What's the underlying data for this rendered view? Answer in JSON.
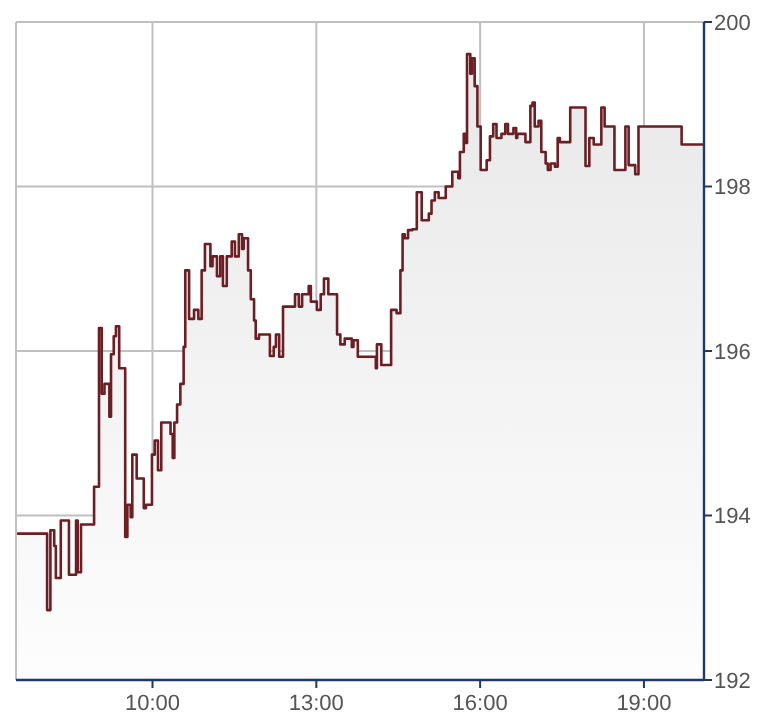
{
  "chart_data": {
    "type": "area",
    "x": [
      7.52,
      8.07,
      8.07,
      8.13,
      8.13,
      8.2,
      8.2,
      8.23,
      8.23,
      8.32,
      8.32,
      8.47,
      8.47,
      8.6,
      8.6,
      8.63,
      8.63,
      8.69,
      8.69,
      8.93,
      8.93,
      9.02,
      9.02,
      9.07,
      9.07,
      9.12,
      9.12,
      9.21,
      9.21,
      9.24,
      9.24,
      9.29,
      9.29,
      9.33,
      9.33,
      9.39,
      9.39,
      9.5,
      9.5,
      9.54,
      9.54,
      9.6,
      9.6,
      9.63,
      9.63,
      9.71,
      9.71,
      9.84,
      9.84,
      9.88,
      9.88,
      9.99,
      9.99,
      10.04,
      10.04,
      10.1,
      10.1,
      10.16,
      10.16,
      10.33,
      10.33,
      10.37,
      10.37,
      10.4,
      10.4,
      10.45,
      10.45,
      10.51,
      10.51,
      10.57,
      10.57,
      10.6,
      10.6,
      10.67,
      10.67,
      10.76,
      10.76,
      10.84,
      10.84,
      10.9,
      10.9,
      10.96,
      10.96,
      11.06,
      11.06,
      11.1,
      11.1,
      11.18,
      11.18,
      11.24,
      11.24,
      11.29,
      11.29,
      11.36,
      11.36,
      11.45,
      11.45,
      11.51,
      11.51,
      11.58,
      11.58,
      11.64,
      11.64,
      11.67,
      11.67,
      11.75,
      11.75,
      11.8,
      11.8,
      11.86,
      11.86,
      11.89,
      11.89,
      11.95,
      11.95,
      12.15,
      12.15,
      12.22,
      12.22,
      12.26,
      12.26,
      12.32,
      12.32,
      12.39,
      12.39,
      12.61,
      12.61,
      12.68,
      12.68,
      12.74,
      12.74,
      12.86,
      12.86,
      12.9,
      12.9,
      13.01,
      13.01,
      13.08,
      13.08,
      13.14,
      13.14,
      13.22,
      13.22,
      13.38,
      13.38,
      13.44,
      13.44,
      13.52,
      13.52,
      13.65,
      13.65,
      13.68,
      13.68,
      13.76,
      13.76,
      14.09,
      14.09,
      14.11,
      14.11,
      14.19,
      14.19,
      14.37,
      14.37,
      14.47,
      14.47,
      14.54,
      14.54,
      14.58,
      14.58,
      14.62,
      14.62,
      14.68,
      14.68,
      14.76,
      14.76,
      14.84,
      14.84,
      14.93,
      14.93,
      15.06,
      15.06,
      15.11,
      15.11,
      15.17,
      15.17,
      15.24,
      15.24,
      15.37,
      15.37,
      15.49,
      15.49,
      15.6,
      15.6,
      15.63,
      15.63,
      15.7,
      15.7,
      15.73,
      15.73,
      15.76,
      15.76,
      15.82,
      15.82,
      15.85,
      15.85,
      15.9,
      15.9,
      15.95,
      15.95,
      16.01,
      16.01,
      16.12,
      16.12,
      16.18,
      16.18,
      16.24,
      16.24,
      16.3,
      16.3,
      16.39,
      16.39,
      16.46,
      16.46,
      16.51,
      16.51,
      16.61,
      16.61,
      16.66,
      16.66,
      16.68,
      16.68,
      16.83,
      16.83,
      16.92,
      16.92,
      16.96,
      16.96,
      17.0,
      17.0,
      17.07,
      17.07,
      17.12,
      17.12,
      17.2,
      17.2,
      17.24,
      17.24,
      17.29,
      17.29,
      17.37,
      17.37,
      17.42,
      17.42,
      17.46,
      17.46,
      17.65,
      17.65,
      17.93,
      17.93,
      18.0,
      18.0,
      18.08,
      18.08,
      18.22,
      18.22,
      18.28,
      18.28,
      18.46,
      18.46,
      18.66,
      18.66,
      18.72,
      18.72,
      18.84,
      18.84,
      18.9,
      18.9,
      19.69,
      19.69,
      20.1
    ],
    "series": [
      {
        "color": "#6b1f24",
        "values": [
          193.78,
          193.78,
          192.85,
          192.85,
          193.82,
          193.82,
          193.63,
          193.63,
          193.24,
          193.24,
          193.94,
          193.94,
          193.28,
          193.28,
          193.94,
          193.94,
          193.31,
          193.31,
          193.89,
          193.89,
          194.35,
          194.35,
          196.28,
          196.28,
          195.48,
          195.48,
          195.6,
          195.6,
          195.2,
          195.2,
          195.96,
          195.96,
          196.18,
          196.18,
          196.3,
          196.3,
          195.79,
          195.79,
          193.74,
          193.74,
          194.13,
          194.13,
          193.98,
          193.98,
          194.74,
          194.74,
          194.45,
          194.45,
          194.09,
          194.09,
          194.13,
          194.13,
          194.74,
          194.74,
          194.91,
          194.91,
          194.55,
          194.55,
          195.13,
          195.13,
          194.99,
          194.99,
          194.7,
          194.7,
          195.13,
          195.13,
          195.35,
          195.35,
          195.6,
          195.6,
          196.05,
          196.05,
          196.98,
          196.98,
          196.39,
          196.39,
          196.5,
          196.5,
          196.39,
          196.39,
          196.98,
          196.98,
          197.3,
          197.3,
          197.03,
          197.03,
          197.15,
          197.15,
          196.91,
          196.91,
          197.15,
          197.15,
          196.79,
          196.79,
          197.15,
          197.15,
          197.33,
          197.33,
          197.15,
          197.15,
          197.42,
          197.42,
          197.24,
          197.24,
          197.37,
          197.37,
          196.98,
          196.98,
          196.63,
          196.63,
          196.37,
          196.37,
          196.15,
          196.15,
          196.2,
          196.2,
          195.94,
          195.94,
          196.05,
          196.05,
          196.2,
          196.2,
          195.93,
          195.93,
          196.54,
          196.54,
          196.69,
          196.69,
          196.54,
          196.54,
          196.69,
          196.69,
          196.79,
          196.79,
          196.6,
          196.6,
          196.5,
          196.5,
          196.69,
          196.69,
          196.88,
          196.88,
          196.69,
          196.69,
          196.2,
          196.2,
          196.08,
          196.08,
          196.15,
          196.15,
          196.05,
          196.05,
          196.13,
          196.13,
          195.93,
          195.93,
          195.79,
          195.79,
          196.08,
          196.08,
          195.83,
          195.83,
          196.5,
          196.5,
          196.46,
          196.46,
          196.98,
          196.98,
          197.42,
          197.42,
          197.37,
          197.37,
          197.47,
          197.47,
          197.48,
          197.48,
          197.93,
          197.93,
          197.59,
          197.59,
          197.67,
          197.67,
          197.83,
          197.83,
          197.93,
          197.93,
          197.86,
          197.86,
          198.0,
          198.0,
          198.18,
          198.18,
          198.1,
          198.1,
          198.42,
          198.42,
          198.64,
          198.64,
          198.53,
          198.53,
          199.61,
          199.61,
          199.37,
          199.37,
          199.56,
          199.56,
          199.22,
          199.22,
          198.73,
          198.73,
          198.2,
          198.2,
          198.32,
          198.32,
          198.61,
          198.61,
          198.76,
          198.76,
          198.59,
          198.59,
          198.64,
          198.64,
          198.76,
          198.76,
          198.64,
          198.64,
          198.71,
          198.71,
          198.59,
          198.59,
          198.64,
          198.64,
          198.54,
          198.54,
          198.98,
          198.98,
          199.02,
          199.02,
          198.73,
          198.73,
          198.8,
          198.8,
          198.42,
          198.42,
          198.28,
          198.28,
          198.2,
          198.2,
          198.28,
          198.28,
          198.24,
          198.24,
          198.59,
          198.59,
          198.54,
          198.54,
          198.96,
          198.96,
          198.25,
          198.25,
          198.59,
          198.59,
          198.51,
          198.51,
          198.96,
          198.96,
          198.73,
          198.73,
          198.2,
          198.2,
          198.73,
          198.73,
          198.26,
          198.26,
          198.15,
          198.15,
          198.73,
          198.73,
          198.51,
          198.51
        ]
      }
    ],
    "xlim": [
      7.5,
      20.1
    ],
    "xticks": [
      {
        "value": 10,
        "label": "10:00"
      },
      {
        "value": 13,
        "label": "13:00"
      },
      {
        "value": 16,
        "label": "16:00"
      },
      {
        "value": 19,
        "label": "19:00"
      }
    ],
    "ylim": [
      192,
      200
    ],
    "yticks": [
      192,
      194,
      196,
      198,
      200
    ],
    "grid": true,
    "marker": "none",
    "line_style": "solid"
  }
}
